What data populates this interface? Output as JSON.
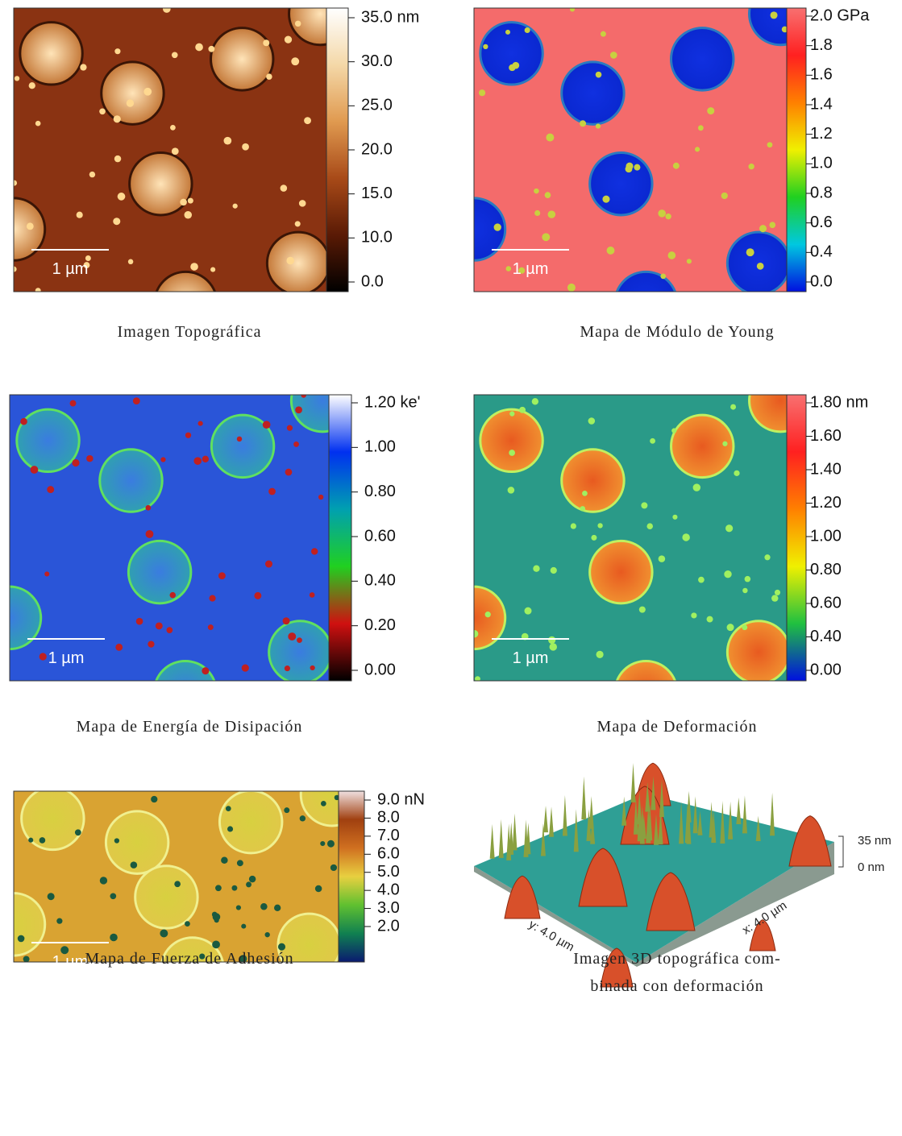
{
  "panels": [
    {
      "caption": "Imagen Topográfica",
      "scale_bar": "1 µm",
      "colorbar_labels": [
        "35.0 nm",
        "30.0",
        "25.0",
        "20.0",
        "15.0",
        "10.0",
        "0.0"
      ]
    },
    {
      "caption": "Mapa de Módulo de Young",
      "scale_bar": "1 µm",
      "colorbar_labels": [
        "2.0 GPa",
        "1.8",
        "1.6",
        "1.4",
        "1.2",
        "1.0",
        "0.8",
        "0.6",
        "0.4",
        "0.0"
      ]
    },
    {
      "caption": "Mapa de Energía de Disipación",
      "scale_bar": "1 µm",
      "colorbar_labels": [
        "1.20 ke'",
        "1.00",
        "0.80",
        "0.60",
        "0.40",
        "0.20",
        "0.00"
      ]
    },
    {
      "caption": "Mapa de Deformación",
      "scale_bar": "1 µm",
      "colorbar_labels": [
        "1.80 nm",
        "1.60",
        "1.40",
        "1.20",
        "1.00",
        "0.80",
        "0.60",
        "0.40",
        "0.00"
      ]
    },
    {
      "caption": "Mapa de Fuerza de Adhesión",
      "scale_bar": "1 µm",
      "colorbar_labels": [
        "9.0 nN",
        "8.0",
        "7.0",
        "6.0",
        "5.0",
        "4.0",
        "3.0",
        "2.0"
      ]
    }
  ],
  "panel_3d": {
    "caption_lines": [
      "Imagen 3D topográfica com-",
      "binada con deformación"
    ],
    "y_axis": "y: 4.0 µm",
    "x_axis": "x: 4.0 µm",
    "z_top": "35 nm",
    "z_bottom": "0 nm"
  }
}
